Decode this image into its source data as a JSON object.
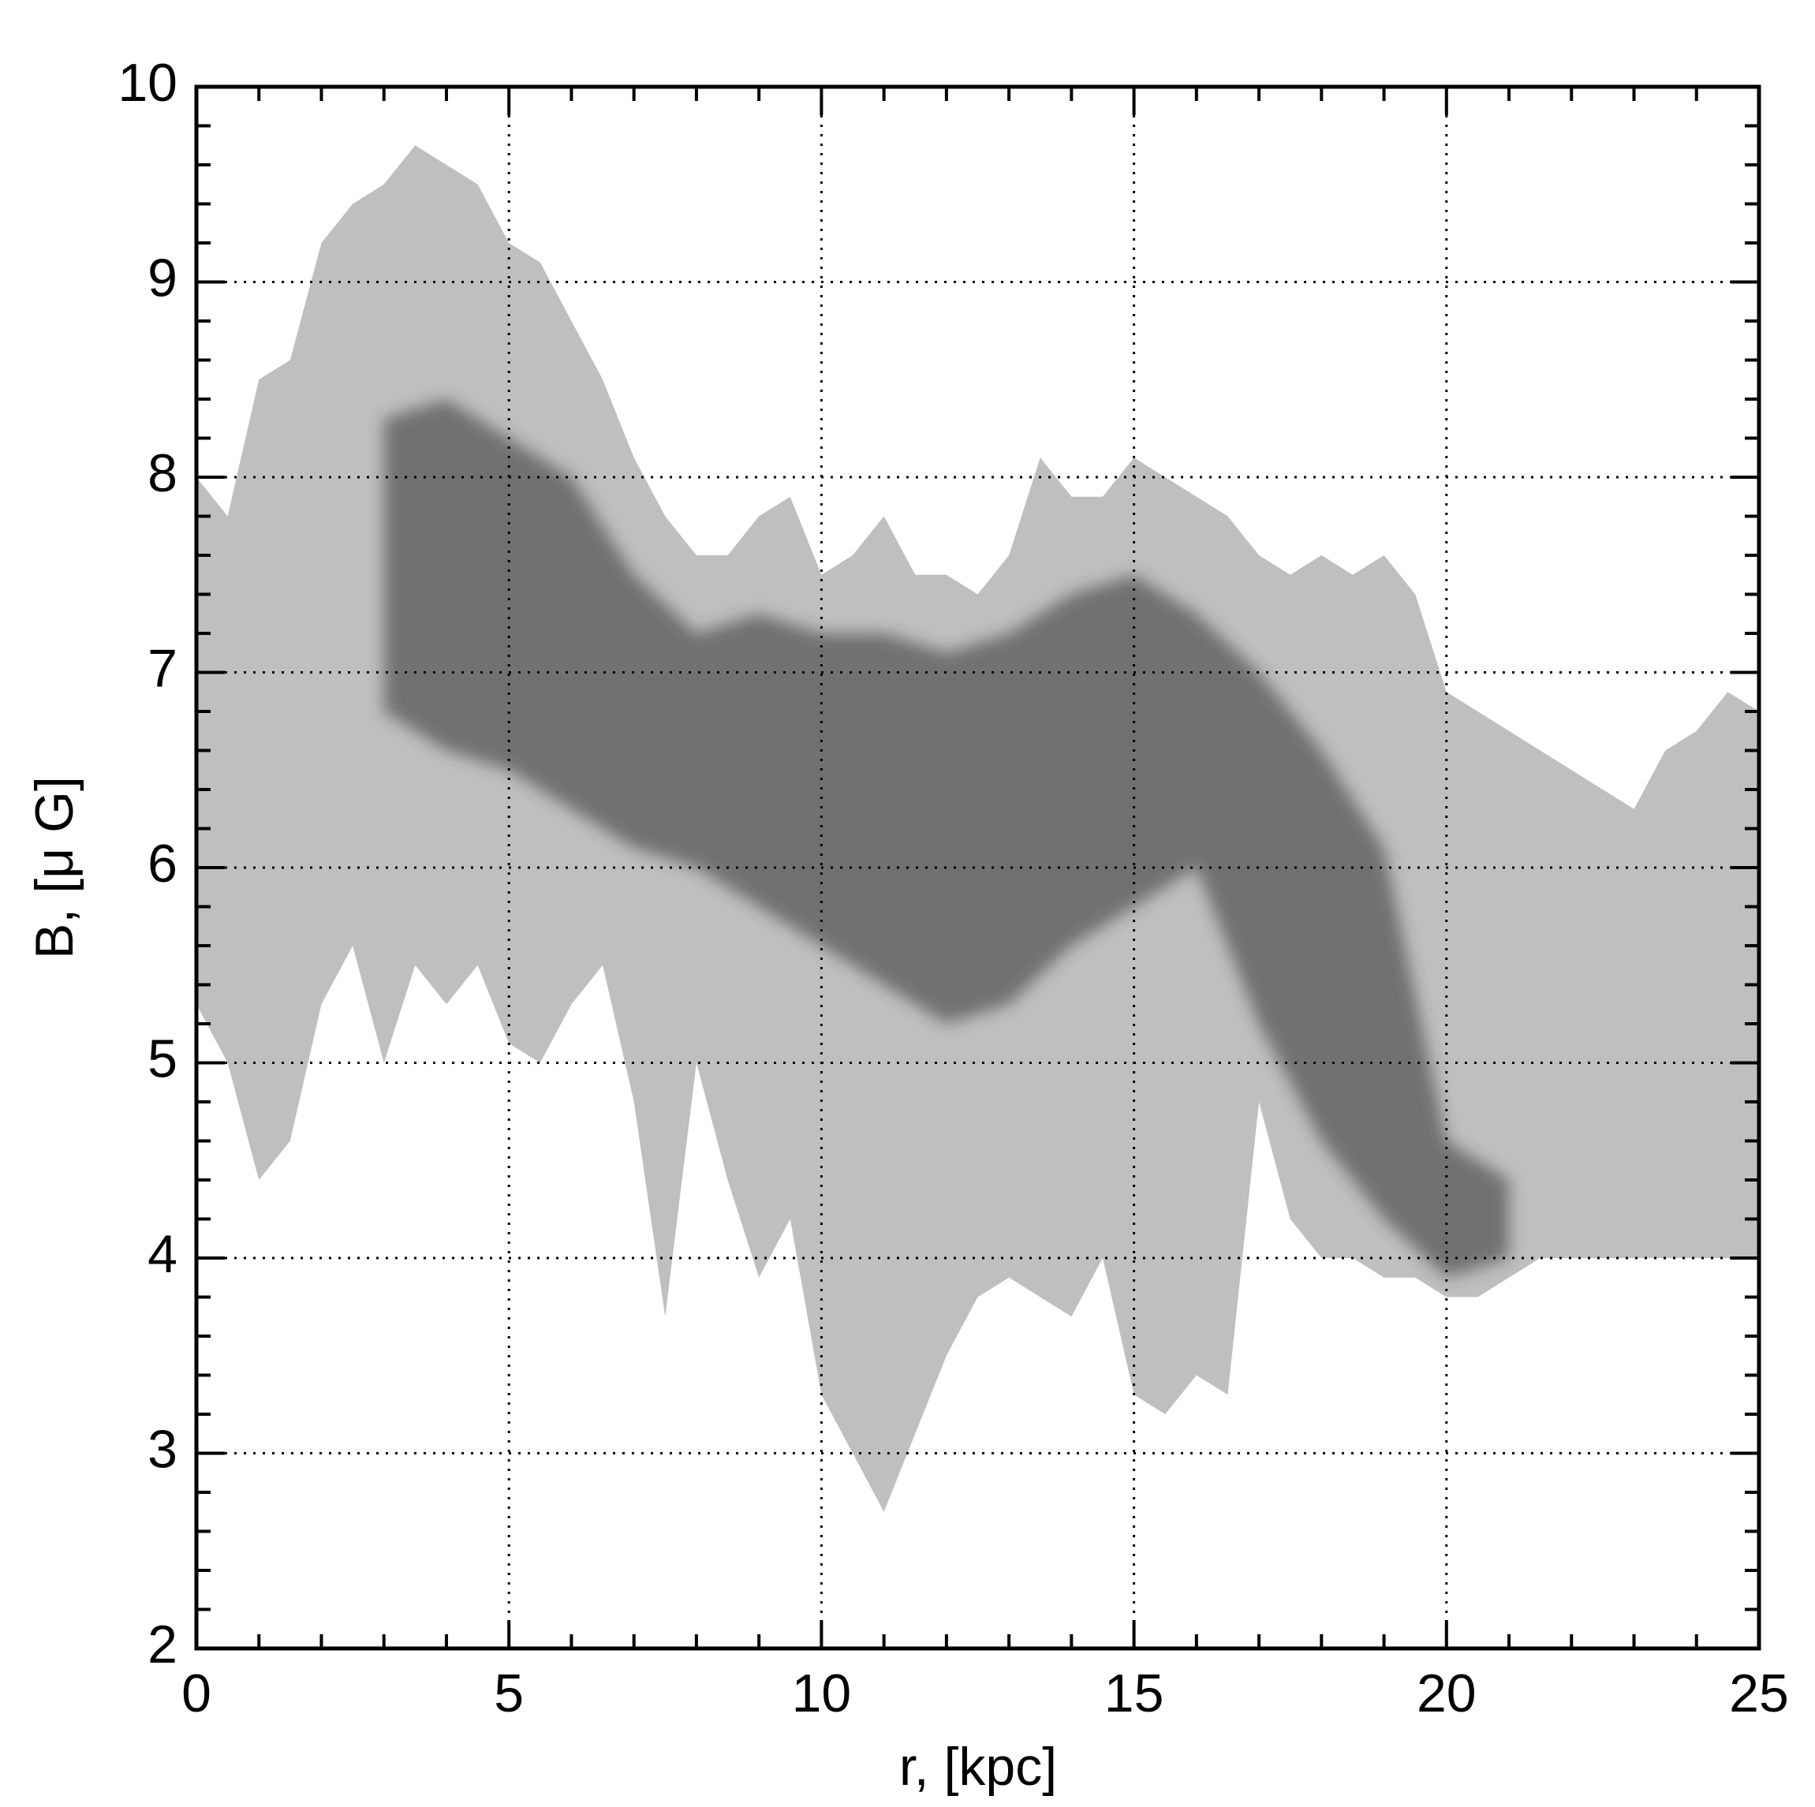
{
  "chart_data": {
    "type": "density-band",
    "xlabel": "r, [kpc]",
    "ylabel": "B, [μ G]",
    "xlim": [
      0,
      25
    ],
    "ylim": [
      2,
      10
    ],
    "xticks": [
      0,
      5,
      10,
      15,
      20,
      25
    ],
    "yticks": [
      2,
      3,
      4,
      5,
      6,
      7,
      8,
      9,
      10
    ],
    "grid": true,
    "envelope": {
      "color": "#b4b4b4",
      "x": [
        0,
        0.5,
        1,
        1.5,
        2,
        2.5,
        3,
        3.5,
        4,
        4.5,
        5,
        5.5,
        6,
        6.5,
        7,
        7.5,
        8,
        8.5,
        9,
        9.5,
        10,
        10.5,
        11,
        11.5,
        12,
        12.5,
        13,
        13.5,
        14,
        14.5,
        15,
        15.5,
        16,
        16.5,
        17,
        17.5,
        18,
        18.5,
        19,
        19.5,
        20,
        20.5,
        21,
        21.5,
        22,
        22.5,
        23,
        23.5,
        24,
        24.5,
        25
      ],
      "upper": [
        8.0,
        7.8,
        8.5,
        8.6,
        9.2,
        9.4,
        9.5,
        9.7,
        9.6,
        9.5,
        9.2,
        9.1,
        8.8,
        8.5,
        8.1,
        7.8,
        7.6,
        7.6,
        7.8,
        7.9,
        7.5,
        7.6,
        7.8,
        7.5,
        7.5,
        7.4,
        7.6,
        8.1,
        7.9,
        7.9,
        8.1,
        8.0,
        7.9,
        7.8,
        7.6,
        7.5,
        7.6,
        7.5,
        7.6,
        7.4,
        6.9,
        6.8,
        6.7,
        6.6,
        6.5,
        6.4,
        6.3,
        6.6,
        6.7,
        6.9,
        6.8
      ],
      "lower": [
        5.3,
        5.0,
        4.4,
        4.6,
        5.3,
        5.6,
        5.0,
        5.5,
        5.3,
        5.5,
        5.1,
        5.0,
        5.3,
        5.5,
        4.8,
        3.7,
        5.0,
        4.4,
        3.9,
        4.2,
        3.3,
        3.0,
        2.7,
        3.1,
        3.5,
        3.8,
        3.9,
        3.8,
        3.7,
        4.0,
        3.3,
        3.2,
        3.4,
        3.3,
        4.8,
        4.2,
        4.0,
        4.0,
        3.9,
        3.9,
        3.8,
        3.8,
        3.9,
        4.0,
        4.0,
        4.0,
        4.0,
        4.0,
        4.0,
        4.0,
        4.0
      ]
    },
    "core": {
      "color": "#3c3c3c",
      "x": [
        3,
        4,
        5,
        6,
        7,
        8,
        9,
        10,
        11,
        12,
        13,
        14,
        15,
        16,
        17,
        18,
        19,
        20,
        21
      ],
      "upper": [
        8.3,
        8.4,
        8.2,
        8.0,
        7.5,
        7.2,
        7.3,
        7.2,
        7.2,
        7.1,
        7.2,
        7.4,
        7.5,
        7.3,
        7.0,
        6.6,
        6.1,
        4.6,
        4.4
      ],
      "lower": [
        6.8,
        6.6,
        6.5,
        6.3,
        6.1,
        6.0,
        5.8,
        5.6,
        5.4,
        5.2,
        5.3,
        5.6,
        5.8,
        6.0,
        5.2,
        4.6,
        4.2,
        3.9,
        4.0
      ]
    }
  }
}
